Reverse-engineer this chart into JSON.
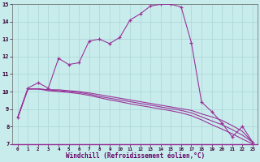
{
  "xlabel": "Windchill (Refroidissement éolien,°C)",
  "x": [
    0,
    1,
    2,
    3,
    4,
    5,
    6,
    7,
    8,
    9,
    10,
    11,
    12,
    13,
    14,
    15,
    16,
    17,
    18,
    19,
    20,
    21,
    22,
    23
  ],
  "y_main": [
    8.5,
    10.2,
    10.5,
    10.2,
    11.9,
    11.55,
    11.65,
    12.9,
    13.0,
    12.75,
    13.1,
    14.1,
    14.45,
    14.9,
    15.0,
    15.0,
    14.85,
    12.8,
    9.4,
    8.85,
    8.2,
    7.4,
    8.0,
    7.1
  ],
  "y_line1": [
    8.5,
    10.15,
    10.15,
    10.1,
    10.1,
    10.05,
    10.0,
    9.92,
    9.82,
    9.72,
    9.62,
    9.52,
    9.42,
    9.32,
    9.22,
    9.12,
    9.02,
    8.92,
    8.72,
    8.55,
    8.35,
    8.05,
    7.72,
    7.1
  ],
  "y_line2": [
    8.5,
    10.15,
    10.15,
    10.1,
    10.05,
    10.0,
    9.95,
    9.85,
    9.72,
    9.62,
    9.52,
    9.42,
    9.32,
    9.22,
    9.12,
    9.02,
    8.92,
    8.78,
    8.55,
    8.32,
    8.1,
    7.82,
    7.5,
    7.1
  ],
  "y_line3": [
    8.5,
    10.15,
    10.15,
    10.05,
    10.0,
    9.95,
    9.88,
    9.78,
    9.65,
    9.52,
    9.42,
    9.3,
    9.2,
    9.1,
    9.0,
    8.9,
    8.78,
    8.62,
    8.38,
    8.1,
    7.85,
    7.58,
    7.28,
    7.0
  ],
  "line_color": "#993399",
  "bg_color": "#c8ecec",
  "grid_color": "#b0d8d8",
  "ylim": [
    7,
    15
  ],
  "xlim": [
    -0.5,
    23.5
  ],
  "yticks": [
    7,
    8,
    9,
    10,
    11,
    12,
    13,
    14,
    15
  ],
  "xticks": [
    0,
    1,
    2,
    3,
    4,
    5,
    6,
    7,
    8,
    9,
    10,
    11,
    12,
    13,
    14,
    15,
    16,
    17,
    18,
    19,
    20,
    21,
    22,
    23
  ]
}
